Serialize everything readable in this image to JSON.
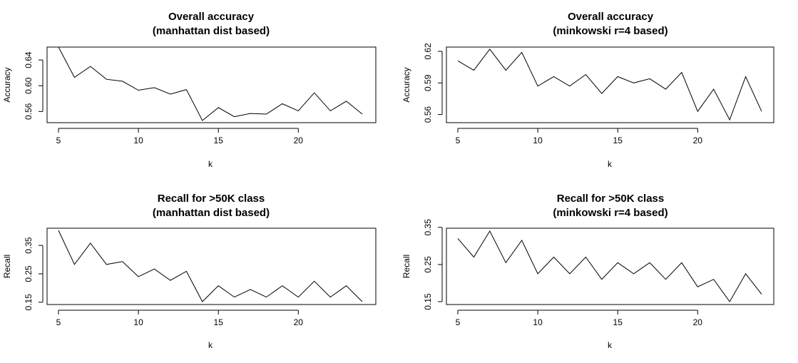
{
  "chart_data": [
    {
      "type": "line",
      "title": "Overall accuracy",
      "subtitle": "(manhattan dist based)",
      "xlabel": "k",
      "ylabel": "Accuracy",
      "xlim": [
        5,
        24
      ],
      "ylim": [
        0.546,
        0.66
      ],
      "xticks": [
        5,
        10,
        15,
        20
      ],
      "xtick_labels": [
        "5",
        "10",
        "15",
        "20"
      ],
      "yticks": [
        0.56,
        0.6,
        0.64
      ],
      "ytick_labels": [
        "0.56",
        "0.60",
        "0.64"
      ],
      "grid": false,
      "x": [
        5,
        6,
        7,
        8,
        9,
        10,
        11,
        12,
        13,
        14,
        15,
        16,
        17,
        18,
        19,
        20,
        21,
        22,
        23,
        24
      ],
      "series": [
        {
          "values": [
            0.66,
            0.613,
            0.63,
            0.61,
            0.607,
            0.593,
            0.597,
            0.587,
            0.594,
            0.546,
            0.566,
            0.552,
            0.557,
            0.556,
            0.572,
            0.561,
            0.589,
            0.561,
            0.576,
            0.556
          ]
        }
      ]
    },
    {
      "type": "line",
      "title": "Overall accuracy",
      "subtitle": "(minkowski r=4 based)",
      "xlabel": "k",
      "ylabel": "Accuracy",
      "xlim": [
        5,
        24
      ],
      "ylim": [
        0.555,
        0.622
      ],
      "xticks": [
        5,
        10,
        15,
        20
      ],
      "xtick_labels": [
        "5",
        "10",
        "15",
        "20"
      ],
      "yticks": [
        0.56,
        0.59,
        0.62
      ],
      "ytick_labels": [
        "0.56",
        "0.59",
        "0.62"
      ],
      "grid": false,
      "x": [
        5,
        6,
        7,
        8,
        9,
        10,
        11,
        12,
        13,
        14,
        15,
        16,
        17,
        18,
        19,
        20,
        21,
        22,
        23,
        24
      ],
      "series": [
        {
          "values": [
            0.611,
            0.602,
            0.622,
            0.602,
            0.619,
            0.587,
            0.596,
            0.587,
            0.598,
            0.58,
            0.596,
            0.59,
            0.594,
            0.584,
            0.6,
            0.563,
            0.584,
            0.555,
            0.596,
            0.563
          ]
        }
      ]
    },
    {
      "type": "line",
      "title": "Recall for >50K class",
      "subtitle": "(manhattan dist based)",
      "xlabel": "k",
      "ylabel": "Recall",
      "xlim": [
        5,
        24
      ],
      "ylim": [
        0.152,
        0.403
      ],
      "xticks": [
        5,
        10,
        15,
        20
      ],
      "xtick_labels": [
        "5",
        "10",
        "15",
        "20"
      ],
      "yticks": [
        0.15,
        0.25,
        0.35
      ],
      "ytick_labels": [
        "0.15",
        "0.25",
        "0.35"
      ],
      "grid": false,
      "x": [
        5,
        6,
        7,
        8,
        9,
        10,
        11,
        12,
        13,
        14,
        15,
        16,
        17,
        18,
        19,
        20,
        21,
        22,
        23,
        24
      ],
      "series": [
        {
          "values": [
            0.403,
            0.283,
            0.358,
            0.283,
            0.293,
            0.24,
            0.267,
            0.227,
            0.259,
            0.152,
            0.208,
            0.168,
            0.195,
            0.168,
            0.208,
            0.168,
            0.224,
            0.168,
            0.208,
            0.152
          ]
        }
      ]
    },
    {
      "type": "line",
      "title": "Recall for >50K class",
      "subtitle": "(minkowski r=4 based)",
      "xlabel": "k",
      "ylabel": "Recall",
      "xlim": [
        5,
        24
      ],
      "ylim": [
        0.15,
        0.34
      ],
      "xticks": [
        5,
        10,
        15,
        20
      ],
      "xtick_labels": [
        "5",
        "10",
        "15",
        "20"
      ],
      "yticks": [
        0.15,
        0.25,
        0.35
      ],
      "ytick_labels": [
        "0.15",
        "0.25",
        "0.35"
      ],
      "grid": false,
      "x": [
        5,
        6,
        7,
        8,
        9,
        10,
        11,
        12,
        13,
        14,
        15,
        16,
        17,
        18,
        19,
        20,
        21,
        22,
        23,
        24
      ],
      "series": [
        {
          "values": [
            0.32,
            0.27,
            0.34,
            0.255,
            0.315,
            0.225,
            0.27,
            0.225,
            0.27,
            0.21,
            0.255,
            0.225,
            0.255,
            0.21,
            0.255,
            0.19,
            0.21,
            0.15,
            0.225,
            0.17
          ]
        }
      ]
    }
  ]
}
